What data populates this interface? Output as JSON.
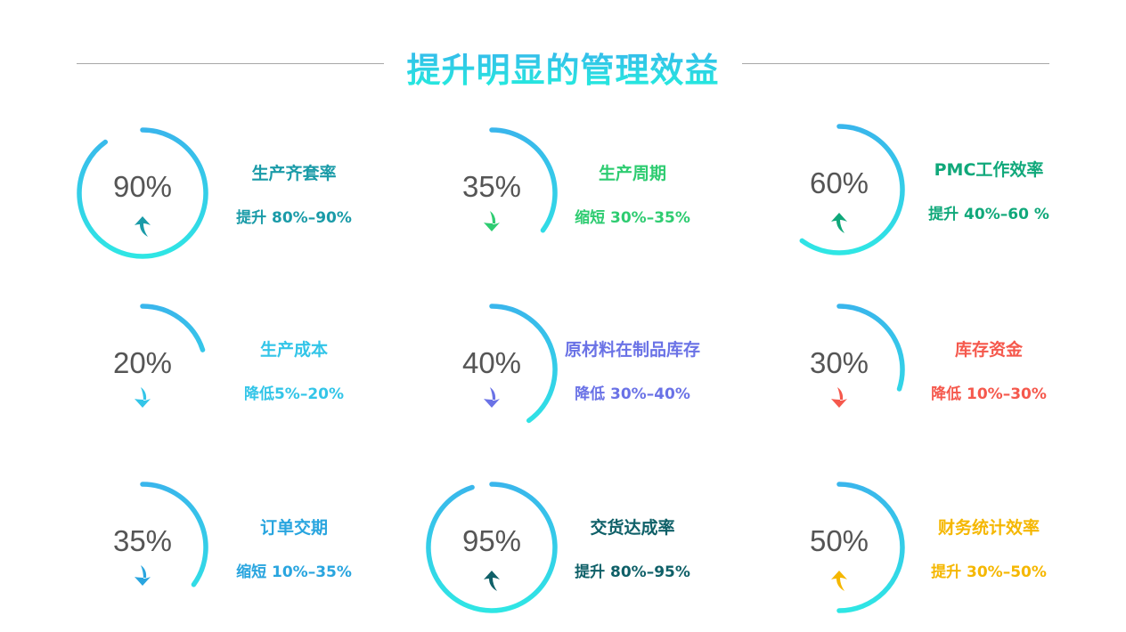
{
  "title": "提升明显的管理效益",
  "gradient": {
    "top": "#3ab3ec",
    "bottom": "#2ee9e4"
  },
  "items": [
    {
      "value": "90%",
      "percent": 90,
      "name": "生产齐套率",
      "range": "提升 80%–90%",
      "direction": "up",
      "icon": "arrow-up-icon",
      "color": "#1a9ba8"
    },
    {
      "value": "35%",
      "percent": 35,
      "name": "生产周期",
      "range": "缩短 30%–35%",
      "direction": "down",
      "icon": "arrow-down-icon",
      "color": "#2ecc71"
    },
    {
      "value": "60%",
      "percent": 60,
      "name": "PMC工作效率",
      "range": "提升 40%–60 %",
      "direction": "up",
      "icon": "arrow-up-icon",
      "color": "#10a87a"
    },
    {
      "value": "20%",
      "percent": 20,
      "name": "生产成本",
      "range": "降低5%–20%",
      "direction": "down",
      "icon": "arrow-down-icon",
      "color": "#33c5e8"
    },
    {
      "value": "40%",
      "percent": 40,
      "name": "原材料在制品库存",
      "range": "降低 30%–40%",
      "direction": "down",
      "icon": "arrow-down-icon",
      "color": "#6a72e6"
    },
    {
      "value": "30%",
      "percent": 30,
      "name": "库存资金",
      "range": "降低 10%–30%",
      "direction": "down",
      "icon": "arrow-down-icon",
      "color": "#f5584c"
    },
    {
      "value": "35%",
      "percent": 35,
      "name": "订单交期",
      "range": "缩短 10%–35%",
      "direction": "down",
      "icon": "arrow-down-icon",
      "color": "#29a5df"
    },
    {
      "value": "95%",
      "percent": 95,
      "name": "交货达成率",
      "range": "提升 80%–95%",
      "direction": "up",
      "icon": "arrow-up-icon",
      "color": "#0f6068"
    },
    {
      "value": "50%",
      "percent": 50,
      "name": "财务统计效率",
      "range": "提升 30%–50%",
      "direction": "up",
      "icon": "arrow-up-icon",
      "color": "#f5b700"
    }
  ]
}
